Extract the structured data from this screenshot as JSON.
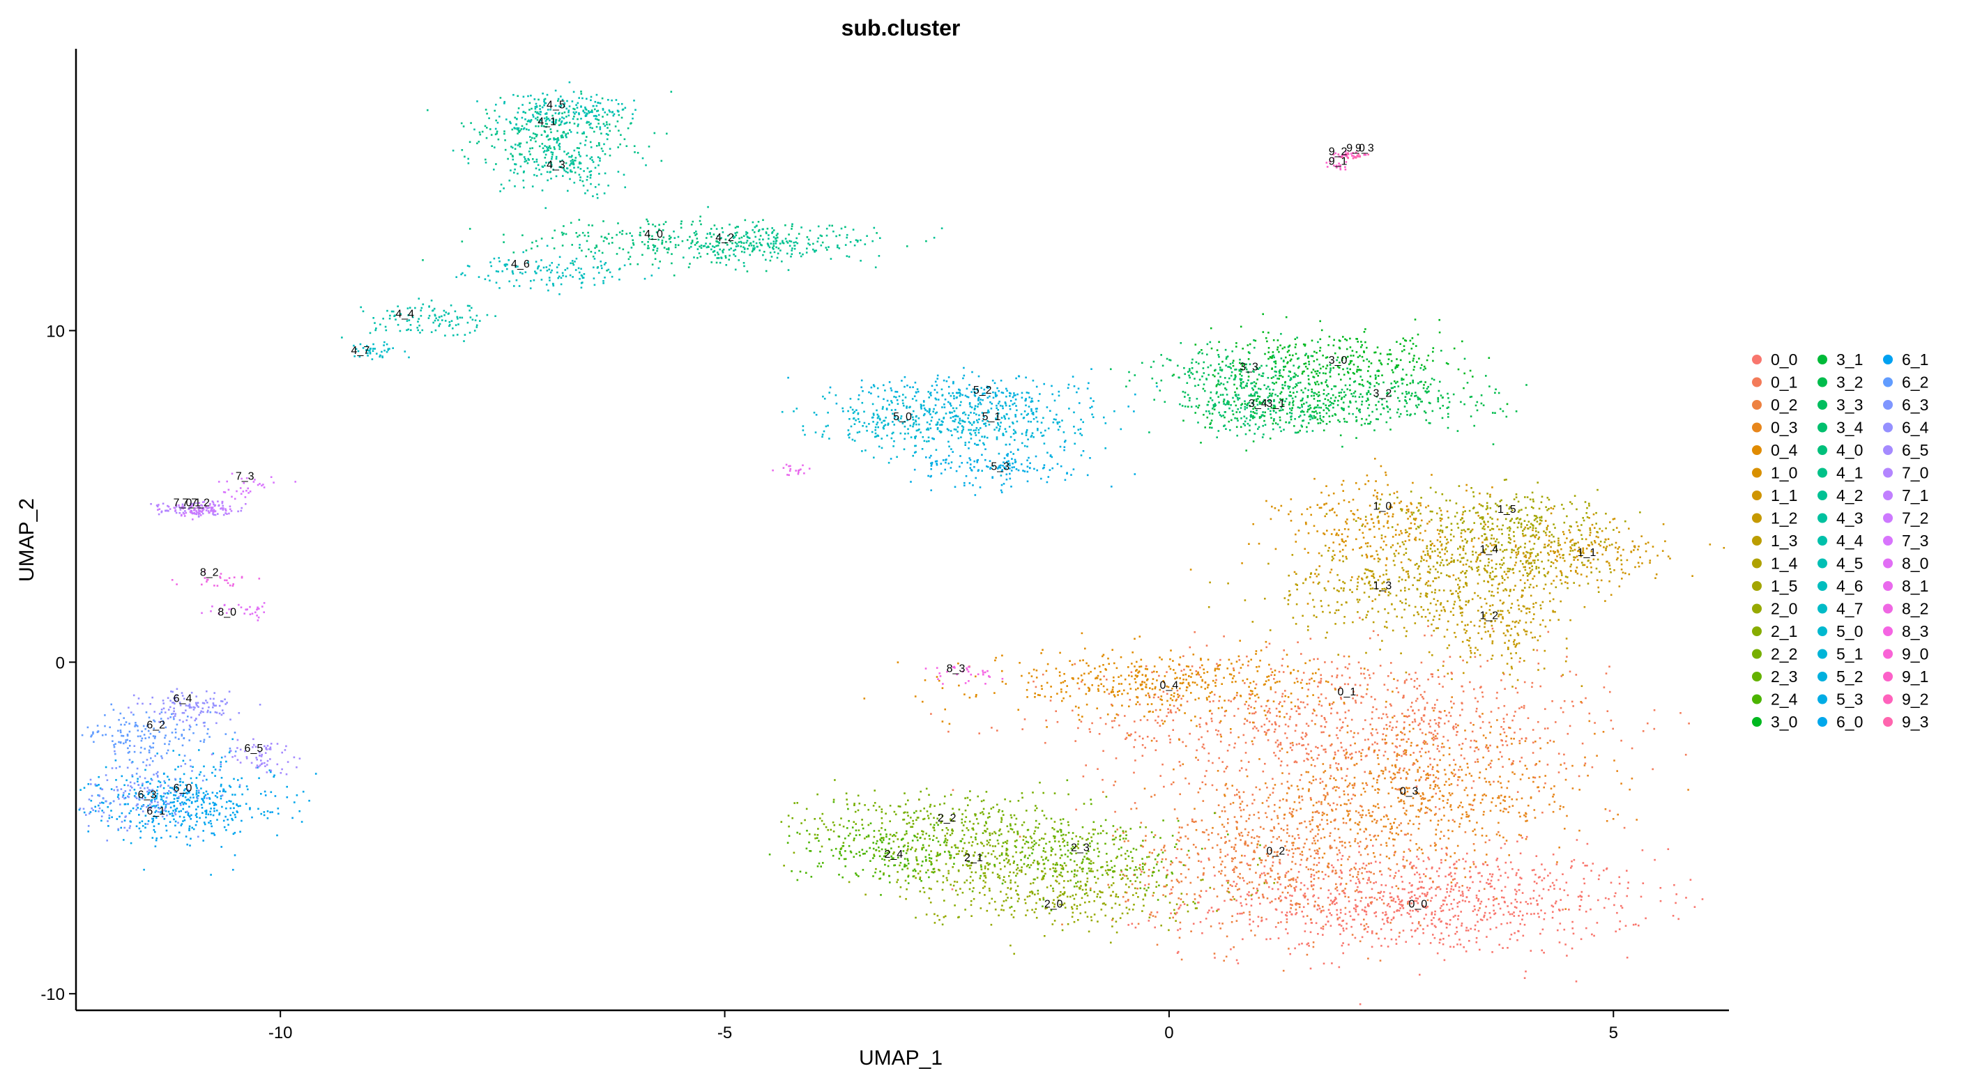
{
  "chart_data": {
    "type": "scatter",
    "title": "sub.cluster",
    "xlabel": "UMAP_1",
    "ylabel": "UMAP_2",
    "xlim": [
      -12.3,
      6.3
    ],
    "ylim": [
      -10.5,
      18.5
    ],
    "xticks": [
      -10,
      -5,
      0,
      5
    ],
    "xtick_labels": [
      "-10",
      "-5",
      "0",
      "5"
    ],
    "yticks": [
      -10,
      0,
      10
    ],
    "ytick_labels": [
      "-10",
      "0",
      "10"
    ],
    "grid": false,
    "legend_position": "right",
    "legend_columns": 3,
    "clusters": [
      {
        "name": "0_0",
        "color": "#F8766D",
        "cx": 2.8,
        "cy": -7.2,
        "sx": 1.3,
        "sy": 0.8,
        "n": 900,
        "label_x": 2.8,
        "label_y": -7.4
      },
      {
        "name": "0_1",
        "color": "#F37B59",
        "cx": 2.0,
        "cy": -1.8,
        "sx": 1.5,
        "sy": 1.1,
        "n": 900,
        "label_x": 2.0,
        "label_y": -1.0
      },
      {
        "name": "0_2",
        "color": "#ED8141",
        "cx": 1.2,
        "cy": -5.8,
        "sx": 0.9,
        "sy": 1.2,
        "n": 650,
        "label_x": 1.2,
        "label_y": -5.8
      },
      {
        "name": "0_3",
        "color": "#E7861B",
        "cx": 2.8,
        "cy": -4.0,
        "sx": 1.0,
        "sy": 1.0,
        "n": 650,
        "label_x": 2.7,
        "label_y": -4.0
      },
      {
        "name": "0_4",
        "color": "#E08B00",
        "cx": -0.1,
        "cy": -0.6,
        "sx": 1.0,
        "sy": 0.5,
        "n": 450,
        "label_x": -0.0,
        "label_y": -0.8
      },
      {
        "name": "1_0",
        "color": "#D89000",
        "cx": 2.4,
        "cy": 4.0,
        "sx": 0.6,
        "sy": 0.8,
        "n": 300,
        "label_x": 2.4,
        "label_y": 4.6
      },
      {
        "name": "1_1",
        "color": "#CF9400",
        "cx": 4.6,
        "cy": 3.3,
        "sx": 0.5,
        "sy": 0.5,
        "n": 230,
        "label_x": 4.7,
        "label_y": 3.2
      },
      {
        "name": "1_2",
        "color": "#C59900",
        "cx": 3.7,
        "cy": 1.3,
        "sx": 0.4,
        "sy": 0.8,
        "n": 230,
        "label_x": 3.6,
        "label_y": 1.3
      },
      {
        "name": "1_3",
        "color": "#BB9D00",
        "cx": 2.5,
        "cy": 2.2,
        "sx": 0.7,
        "sy": 0.7,
        "n": 300,
        "label_x": 2.4,
        "label_y": 2.2
      },
      {
        "name": "1_4",
        "color": "#AFA100",
        "cx": 3.7,
        "cy": 3.2,
        "sx": 0.6,
        "sy": 0.6,
        "n": 280,
        "label_x": 3.6,
        "label_y": 3.3
      },
      {
        "name": "1_5",
        "color": "#A3A500",
        "cx": 3.8,
        "cy": 4.4,
        "sx": 0.6,
        "sy": 0.5,
        "n": 230,
        "label_x": 3.8,
        "label_y": 4.5
      },
      {
        "name": "2_0",
        "color": "#96A900",
        "cx": -1.2,
        "cy": -7.0,
        "sx": 0.8,
        "sy": 0.5,
        "n": 260,
        "label_x": -1.3,
        "label_y": -7.4
      },
      {
        "name": "2_1",
        "color": "#87AC00",
        "cx": -2.0,
        "cy": -6.0,
        "sx": 0.8,
        "sy": 0.6,
        "n": 320,
        "label_x": -2.2,
        "label_y": -6.0
      },
      {
        "name": "2_2",
        "color": "#77AF00",
        "cx": -2.6,
        "cy": -4.8,
        "sx": 0.8,
        "sy": 0.5,
        "n": 280,
        "label_x": -2.5,
        "label_y": -4.8
      },
      {
        "name": "2_3",
        "color": "#64B200",
        "cx": -0.9,
        "cy": -5.8,
        "sx": 0.6,
        "sy": 0.6,
        "n": 240,
        "label_x": -1.0,
        "label_y": -5.7
      },
      {
        "name": "2_4",
        "color": "#4BB400",
        "cx": -3.2,
        "cy": -5.7,
        "sx": 0.5,
        "sy": 0.45,
        "n": 200,
        "label_x": -3.1,
        "label_y": -5.9
      },
      {
        "name": "3_0",
        "color": "#00B81F",
        "cx": 1.9,
        "cy": 9.1,
        "sx": 0.7,
        "sy": 0.45,
        "n": 300,
        "label_x": 1.9,
        "label_y": 9.0
      },
      {
        "name": "3_1",
        "color": "#00BA38",
        "cx": 1.3,
        "cy": 7.8,
        "sx": 0.5,
        "sy": 0.45,
        "n": 230,
        "label_x": 1.2,
        "label_y": 7.7
      },
      {
        "name": "3_2",
        "color": "#00BC4C",
        "cx": 2.5,
        "cy": 8.0,
        "sx": 0.6,
        "sy": 0.45,
        "n": 240,
        "label_x": 2.4,
        "label_y": 8.0
      },
      {
        "name": "3_3",
        "color": "#00BE5E",
        "cx": 0.8,
        "cy": 8.7,
        "sx": 0.55,
        "sy": 0.45,
        "n": 220,
        "label_x": 0.9,
        "label_y": 8.8
      },
      {
        "name": "3_4",
        "color": "#00BF6D",
        "cx": 1.0,
        "cy": 7.6,
        "sx": 0.4,
        "sy": 0.4,
        "n": 160,
        "label_x": 1.0,
        "label_y": 7.7
      },
      {
        "name": "4_0",
        "color": "#00C07B",
        "cx": -5.5,
        "cy": 12.7,
        "sx": 0.9,
        "sy": 0.35,
        "n": 260,
        "label_x": -5.8,
        "label_y": 12.8
      },
      {
        "name": "4_1",
        "color": "#00C188",
        "cx": -7.0,
        "cy": 16.0,
        "sx": 0.5,
        "sy": 0.5,
        "n": 240,
        "label_x": -7.0,
        "label_y": 16.2
      },
      {
        "name": "4_2",
        "color": "#00C194",
        "cx": -4.5,
        "cy": 12.6,
        "sx": 0.6,
        "sy": 0.3,
        "n": 200,
        "label_x": -5.0,
        "label_y": 12.7
      },
      {
        "name": "4_3",
        "color": "#00C19F",
        "cx": -6.8,
        "cy": 15.0,
        "sx": 0.4,
        "sy": 0.45,
        "n": 170,
        "label_x": -6.9,
        "label_y": 14.9
      },
      {
        "name": "4_4",
        "color": "#00C0AA",
        "cx": -8.3,
        "cy": 10.3,
        "sx": 0.35,
        "sy": 0.25,
        "n": 110,
        "label_x": -8.6,
        "label_y": 10.4
      },
      {
        "name": "4_5",
        "color": "#00BFB4",
        "cx": -6.8,
        "cy": 16.7,
        "sx": 0.4,
        "sy": 0.3,
        "n": 170,
        "label_x": -6.9,
        "label_y": 16.7
      },
      {
        "name": "4_6",
        "color": "#00BDBE",
        "cx": -7.0,
        "cy": 11.8,
        "sx": 0.45,
        "sy": 0.25,
        "n": 130,
        "label_x": -7.3,
        "label_y": 11.9
      },
      {
        "name": "4_7",
        "color": "#00BBC7",
        "cx": -8.9,
        "cy": 9.4,
        "sx": 0.15,
        "sy": 0.12,
        "n": 40,
        "label_x": -9.1,
        "label_y": 9.3
      },
      {
        "name": "5_0",
        "color": "#00B8CF",
        "cx": -3.0,
        "cy": 7.3,
        "sx": 0.55,
        "sy": 0.45,
        "n": 240,
        "label_x": -3.0,
        "label_y": 7.3
      },
      {
        "name": "5_1",
        "color": "#00B4D7",
        "cx": -1.9,
        "cy": 7.2,
        "sx": 0.55,
        "sy": 0.5,
        "n": 240,
        "label_x": -2.0,
        "label_y": 7.3
      },
      {
        "name": "5_2",
        "color": "#00B0DE",
        "cx": -2.2,
        "cy": 8.1,
        "sx": 0.7,
        "sy": 0.35,
        "n": 200,
        "label_x": -2.1,
        "label_y": 8.1
      },
      {
        "name": "5_3",
        "color": "#00ACE5",
        "cx": -1.9,
        "cy": 5.9,
        "sx": 0.5,
        "sy": 0.3,
        "n": 150,
        "label_x": -1.9,
        "label_y": 5.8
      },
      {
        "name": "6_0",
        "color": "#00A7EB",
        "cx": -11.0,
        "cy": -4.0,
        "sx": 0.5,
        "sy": 0.6,
        "n": 240,
        "label_x": -11.1,
        "label_y": -3.9
      },
      {
        "name": "6_1",
        "color": "#00A1F1",
        "cx": -11.2,
        "cy": -4.4,
        "sx": 0.5,
        "sy": 0.5,
        "n": 220,
        "label_x": -11.4,
        "label_y": -4.6
      },
      {
        "name": "6_2",
        "color": "#619CFF",
        "cx": -11.5,
        "cy": -2.2,
        "sx": 0.4,
        "sy": 0.4,
        "n": 150,
        "label_x": -11.4,
        "label_y": -2.0
      },
      {
        "name": "6_3",
        "color": "#7F96FF",
        "cx": -11.6,
        "cy": -4.0,
        "sx": 0.4,
        "sy": 0.5,
        "n": 160,
        "label_x": -11.5,
        "label_y": -4.1
      },
      {
        "name": "6_4",
        "color": "#9590FF",
        "cx": -11.0,
        "cy": -1.3,
        "sx": 0.3,
        "sy": 0.3,
        "n": 110,
        "label_x": -11.1,
        "label_y": -1.2
      },
      {
        "name": "6_5",
        "color": "#A58AFF",
        "cx": -10.3,
        "cy": -2.8,
        "sx": 0.2,
        "sy": 0.25,
        "n": 60,
        "label_x": -10.3,
        "label_y": -2.7
      },
      {
        "name": "7_0",
        "color": "#B385FF",
        "cx": -11.0,
        "cy": 4.6,
        "sx": 0.25,
        "sy": 0.1,
        "n": 60,
        "label_x": -11.1,
        "label_y": 4.7
      },
      {
        "name": "7_1",
        "color": "#C17FFF",
        "cx": -10.8,
        "cy": 4.7,
        "sx": 0.2,
        "sy": 0.1,
        "n": 50,
        "label_x": -11.0,
        "label_y": 4.7
      },
      {
        "name": "7_2",
        "color": "#CD79FF",
        "cx": -10.9,
        "cy": 4.6,
        "sx": 0.2,
        "sy": 0.1,
        "n": 50,
        "label_x": -10.9,
        "label_y": 4.7
      },
      {
        "name": "7_3",
        "color": "#D874FD",
        "cx": -10.4,
        "cy": 5.3,
        "sx": 0.2,
        "sy": 0.15,
        "n": 30,
        "label_x": -10.4,
        "label_y": 5.5
      },
      {
        "name": "8_0",
        "color": "#E16EF5",
        "cx": -10.5,
        "cy": 1.6,
        "sx": 0.2,
        "sy": 0.1,
        "n": 30,
        "label_x": -10.6,
        "label_y": 1.4
      },
      {
        "name": "8_1",
        "color": "#E96AED",
        "cx": -4.2,
        "cy": 5.8,
        "sx": 0.12,
        "sy": 0.1,
        "n": 18,
        "label_x": null,
        "label_y": null
      },
      {
        "name": "8_2",
        "color": "#EF67E3",
        "cx": -10.7,
        "cy": 2.5,
        "sx": 0.15,
        "sy": 0.12,
        "n": 25,
        "label_x": -10.8,
        "label_y": 2.6
      },
      {
        "name": "8_3",
        "color": "#F564E3",
        "cx": -2.3,
        "cy": -0.3,
        "sx": 0.2,
        "sy": 0.15,
        "n": 30,
        "label_x": -2.4,
        "label_y": -0.3
      },
      {
        "name": "9_0",
        "color": "#F963D6",
        "cx": 2.0,
        "cy": 15.3,
        "sx": 0.08,
        "sy": 0.05,
        "n": 15,
        "label_x": 2.1,
        "label_y": 15.4
      },
      {
        "name": "9_1",
        "color": "#FC61C9",
        "cx": 1.9,
        "cy": 15.0,
        "sx": 0.06,
        "sy": 0.08,
        "n": 15,
        "label_x": 1.9,
        "label_y": 15.0
      },
      {
        "name": "9_2",
        "color": "#FF62BC",
        "cx": 2.0,
        "cy": 15.3,
        "sx": 0.07,
        "sy": 0.05,
        "n": 15,
        "label_x": 1.9,
        "label_y": 15.3
      },
      {
        "name": "9_3",
        "color": "#FF65AE",
        "cx": 2.1,
        "cy": 15.3,
        "sx": 0.08,
        "sy": 0.05,
        "n": 15,
        "label_x": 2.2,
        "label_y": 15.4
      }
    ]
  }
}
